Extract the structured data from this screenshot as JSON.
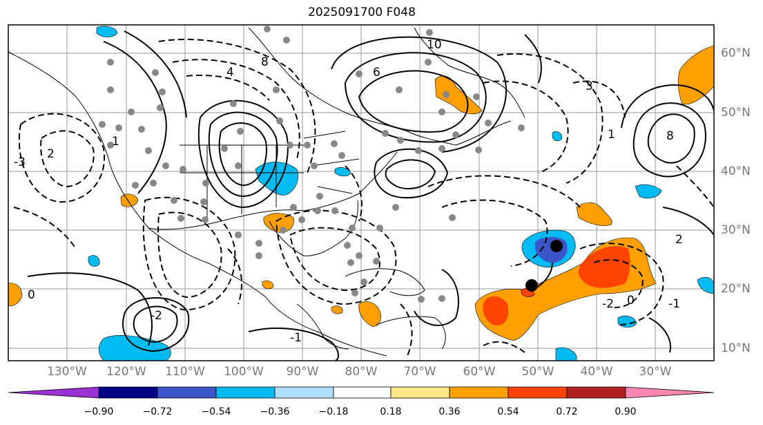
{
  "title": "2025091700 F048",
  "map": {
    "lat_labels": [
      "60°N",
      "50°N",
      "40°N",
      "30°N",
      "20°N",
      "10°N"
    ],
    "lon_labels": [
      "130°W",
      "120°W",
      "110°W",
      "100°W",
      "90°W",
      "80°W",
      "70°W",
      "60°W",
      "50°W",
      "40°W",
      "30°W"
    ],
    "contour_labels": [
      "10",
      "8",
      "6",
      "4",
      "3",
      "2",
      "1",
      "0",
      "-1",
      "-2",
      "-3",
      "8",
      "2",
      "1",
      "0",
      "-1",
      "-2"
    ]
  },
  "colorbar": {
    "colors": [
      "#9b32d6",
      "#000086",
      "#3a56c9",
      "#00bbf2",
      "#b0e0ff",
      "#ffffff",
      "#ffe78a",
      "#ff9f00",
      "#ff4400",
      "#b02020",
      "#ff86b3"
    ],
    "tick_labels": [
      "−0.90",
      "−0.72",
      "−0.54",
      "−0.36",
      "−0.18",
      "0.18",
      "0.36",
      "0.54",
      "0.72",
      "0.90"
    ]
  }
}
